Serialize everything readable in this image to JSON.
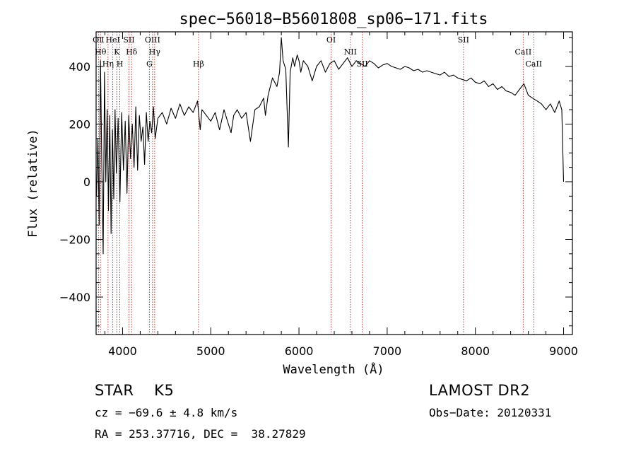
{
  "chart_data": {
    "type": "line",
    "title": "spec−56018−B5601808_sp06−171.fits",
    "xlabel": "Wavelength (Å)",
    "ylabel": "Flux (relative)",
    "xlim": [
      3700,
      9100
    ],
    "ylim": [
      -530,
      520
    ],
    "x_ticks": [
      4000,
      5000,
      6000,
      7000,
      8000,
      9000
    ],
    "x_tick_labels": [
      "4000",
      "5000",
      "6000",
      "7000",
      "8000",
      "9000"
    ],
    "y_ticks": [
      -400,
      -200,
      0,
      200,
      400
    ],
    "y_tick_labels": [
      "−400",
      "−200",
      "0",
      "200",
      "400"
    ],
    "series": [
      {
        "color": "#000000",
        "x": [
          3705,
          3720,
          3735,
          3750,
          3765,
          3780,
          3795,
          3810,
          3825,
          3840,
          3855,
          3870,
          3885,
          3900,
          3915,
          3930,
          3950,
          3970,
          3990,
          4010,
          4030,
          4050,
          4070,
          4090,
          4110,
          4130,
          4150,
          4170,
          4190,
          4210,
          4230,
          4250,
          4270,
          4290,
          4310,
          4330,
          4350,
          4370,
          4400,
          4450,
          4500,
          4550,
          4600,
          4650,
          4700,
          4750,
          4800,
          4850,
          4880,
          4900,
          4950,
          5000,
          5050,
          5100,
          5150,
          5200,
          5230,
          5260,
          5300,
          5350,
          5400,
          5450,
          5500,
          5550,
          5600,
          5620,
          5650,
          5700,
          5750,
          5780,
          5800,
          5820,
          5850,
          5880,
          5900,
          5930,
          5950,
          5980,
          6000,
          6020,
          6050,
          6100,
          6150,
          6200,
          6250,
          6300,
          6350,
          6400,
          6450,
          6500,
          6550,
          6600,
          6650,
          6700,
          6750,
          6800,
          6850,
          6900,
          6950,
          7000,
          7050,
          7100,
          7150,
          7200,
          7250,
          7300,
          7350,
          7400,
          7450,
          7500,
          7550,
          7600,
          7650,
          7700,
          7750,
          7800,
          7850,
          7900,
          7950,
          8000,
          8050,
          8100,
          8150,
          8200,
          8250,
          8300,
          8350,
          8400,
          8450,
          8500,
          8550,
          8600,
          8650,
          8700,
          8750,
          8800,
          8850,
          8900,
          8950,
          8980,
          9000
        ],
        "values": [
          -50,
          150,
          -150,
          420,
          50,
          -250,
          380,
          0,
          250,
          -100,
          230,
          -180,
          180,
          -60,
          250,
          30,
          220,
          -70,
          240,
          40,
          210,
          -40,
          230,
          80,
          200,
          50,
          260,
          40,
          230,
          140,
          190,
          60,
          240,
          140,
          210,
          170,
          260,
          150,
          220,
          240,
          200,
          255,
          220,
          270,
          230,
          260,
          240,
          280,
          180,
          250,
          230,
          210,
          240,
          180,
          250,
          200,
          170,
          230,
          250,
          220,
          240,
          140,
          250,
          260,
          290,
          230,
          300,
          360,
          330,
          380,
          500,
          420,
          390,
          120,
          380,
          430,
          400,
          440,
          420,
          380,
          420,
          400,
          350,
          400,
          420,
          380,
          410,
          420,
          390,
          410,
          430,
          400,
          420,
          410,
          400,
          420,
          410,
          395,
          405,
          410,
          400,
          395,
          390,
          400,
          395,
          385,
          390,
          380,
          385,
          380,
          375,
          370,
          380,
          365,
          370,
          360,
          355,
          350,
          360,
          345,
          340,
          350,
          330,
          340,
          320,
          330,
          315,
          310,
          300,
          320,
          340,
          300,
          290,
          280,
          270,
          250,
          270,
          240,
          280,
          250,
          0
        ]
      }
    ],
    "lines": [
      {
        "label": "OⅡ",
        "x": 3727
      },
      {
        "label": "Hθ",
        "x": 3750
      },
      {
        "label": "Hη",
        "x": 3835
      },
      {
        "label": "HeI",
        "x": 3889
      },
      {
        "label": "K",
        "x": 3934
      },
      {
        "label": "H",
        "x": 3969
      },
      {
        "label": "SII",
        "x": 4072
      },
      {
        "label": "Hδ",
        "x": 4102
      },
      {
        "label": "G",
        "x": 4304
      },
      {
        "label": "OIII",
        "x": 4340
      },
      {
        "label": "Hγ",
        "x": 4364
      },
      {
        "label": "Hβ",
        "x": 4861
      },
      {
        "label": "OI",
        "x": 6364
      },
      {
        "label": "NII",
        "x": 6583
      },
      {
        "label": "SII",
        "x": 6717
      },
      {
        "label": "SII",
        "x": 7865
      },
      {
        "label": "CaII",
        "x": 8542
      },
      {
        "label": "CaII",
        "x": 8662
      }
    ]
  },
  "info": {
    "class": "STAR    K5",
    "cz": "cz = −69.6 ± 4.8 km/s",
    "radec": "RA = 253.37716, DEC =  38.27829",
    "survey": "LAMOST DR2",
    "obsdate": "Obs−Date: 20120331"
  }
}
